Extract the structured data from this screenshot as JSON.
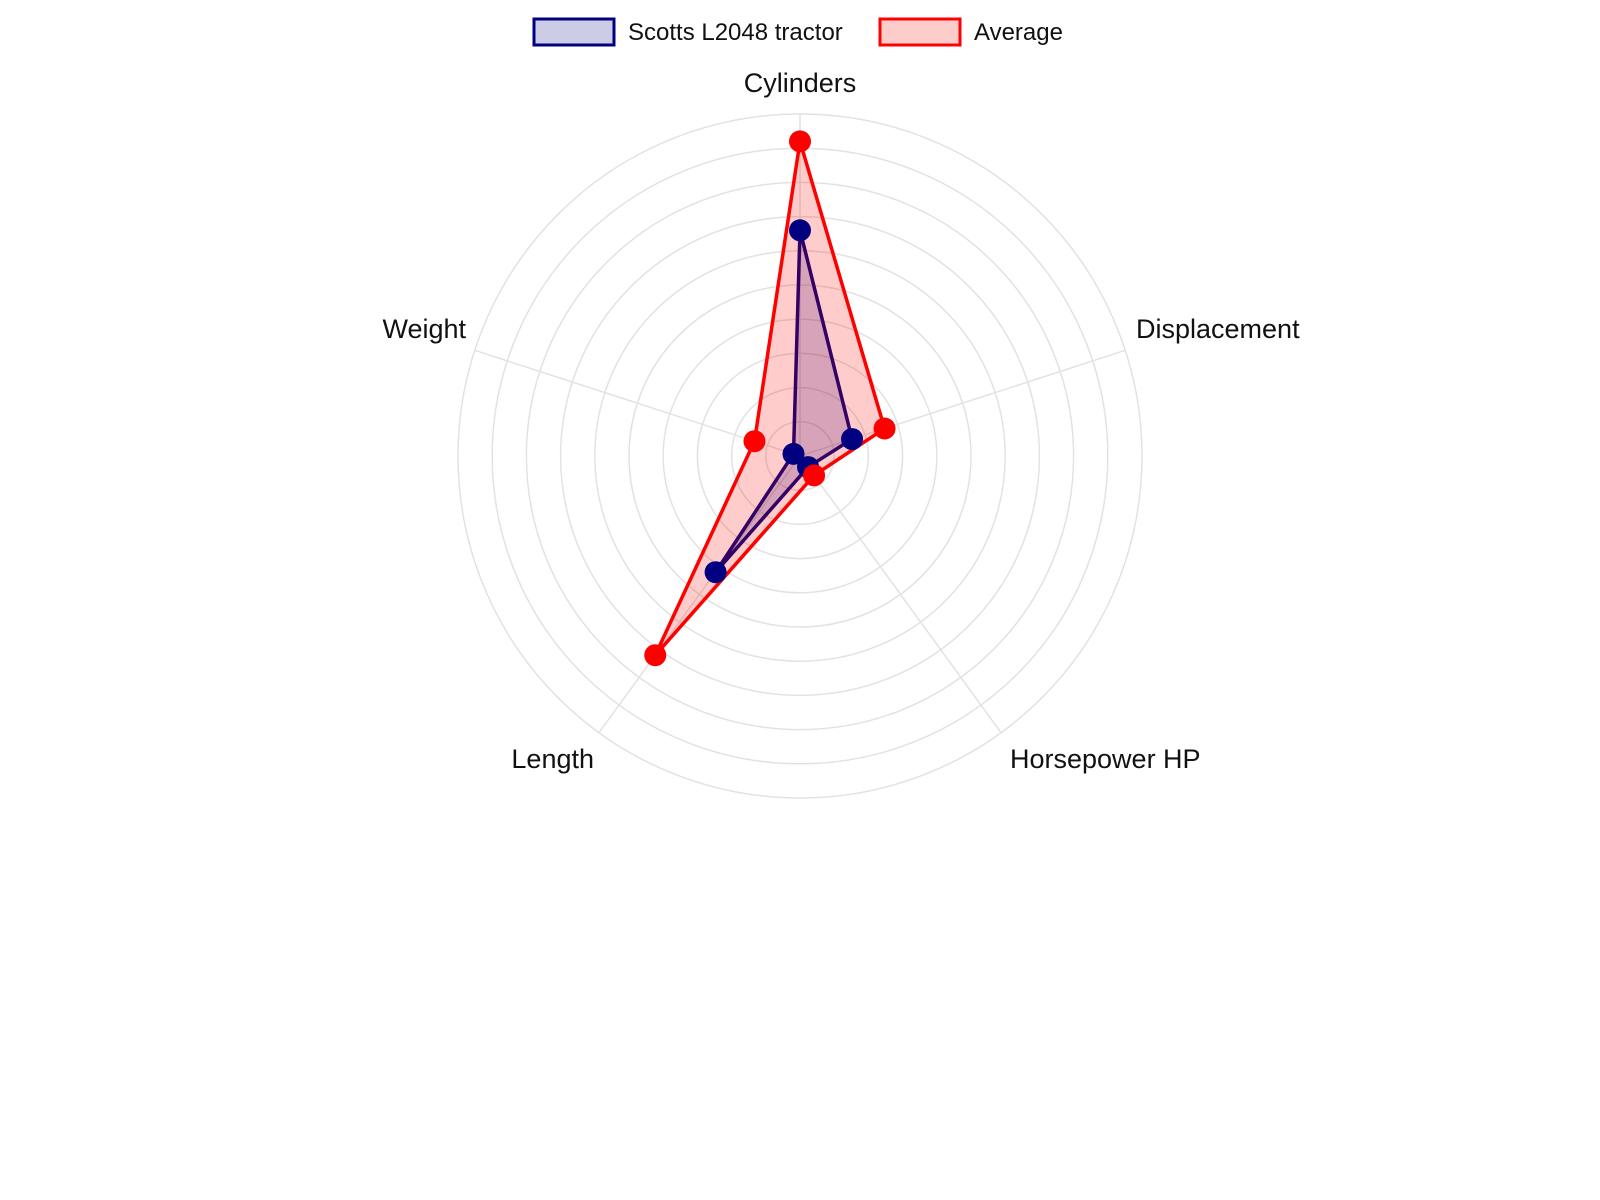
{
  "chart_data": {
    "type": "radar",
    "title": "",
    "labels": [
      "Cylinders",
      "Displacement",
      "Horsepower HP",
      "Length",
      "Weight"
    ],
    "scale": {
      "min": 0,
      "max": 10,
      "rings": 10,
      "tick_labels_shown": false,
      "grid": true
    },
    "legend": {
      "position": "top"
    },
    "series": [
      {
        "name": "Scotts L2048 tractor",
        "values": [
          6.6,
          1.6,
          0.4,
          4.2,
          0.2
        ],
        "border_color": "#000080",
        "fill_color": "rgba(0,0,128,0.2)"
      },
      {
        "name": "Average",
        "values": [
          9.2,
          2.6,
          0.7,
          7.2,
          1.4
        ],
        "border_color": "#ff0000",
        "fill_color": "rgba(255,0,0,0.2)"
      }
    ]
  }
}
